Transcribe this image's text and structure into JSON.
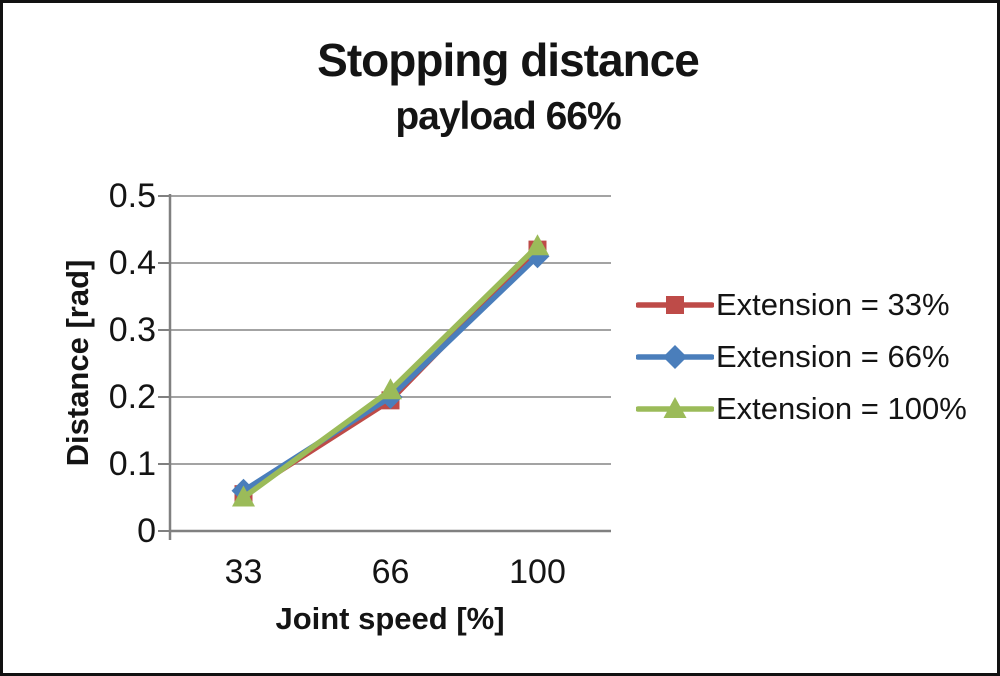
{
  "chart_data": {
    "type": "line",
    "title": "Stopping distance",
    "subtitle": "payload 66%",
    "xlabel": "Joint speed [%]",
    "ylabel": "Distance [rad]",
    "categories": [
      "33",
      "66",
      "100"
    ],
    "y_ticks": [
      {
        "value": 0,
        "label": "0"
      },
      {
        "value": 0.1,
        "label": "0.1"
      },
      {
        "value": 0.2,
        "label": "0.2"
      },
      {
        "value": 0.3,
        "label": "0.3"
      },
      {
        "value": 0.4,
        "label": "0.4"
      },
      {
        "value": 0.5,
        "label": "0.5"
      }
    ],
    "ylim": [
      0,
      0.5
    ],
    "grid": "horizontal",
    "legend_position": "right",
    "series": [
      {
        "name": "Extension = 33%",
        "color": "#BE4B48",
        "marker": "square",
        "values": [
          0.055,
          0.195,
          0.42
        ]
      },
      {
        "name": "Extension = 66%",
        "color": "#4A7EBB",
        "marker": "diamond",
        "values": [
          0.06,
          0.2,
          0.41
        ]
      },
      {
        "name": "Extension = 100%",
        "color": "#9BBB59",
        "marker": "triangle",
        "values": [
          0.05,
          0.21,
          0.425
        ]
      }
    ],
    "colors": {
      "grid": "#A3A3A3",
      "axis": "#808080",
      "text": "#141414",
      "background": "#FFFFFF",
      "frame_border": "#111111"
    }
  }
}
